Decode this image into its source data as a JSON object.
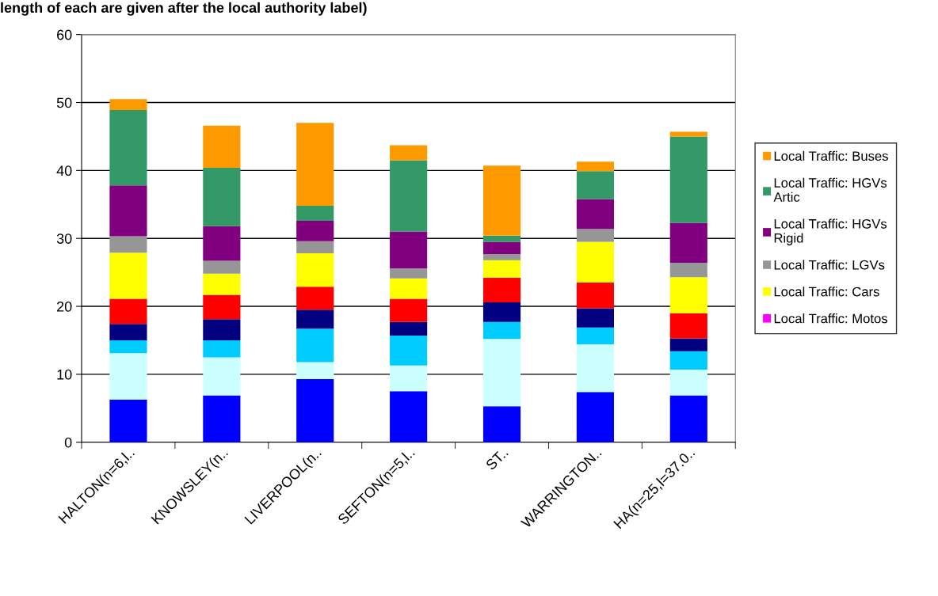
{
  "chart_data": {
    "type": "bar",
    "stacked": true,
    "title": "length of each are given after the local authority label)",
    "categories": [
      "HALTON(n=6,l..",
      "KNOWSLEY(n..",
      "LIVERPOOL(n..",
      "SEFTON(n=5,l..",
      "ST..",
      "WARRINGTON..",
      "HA(n=25,l=37.0.."
    ],
    "series": [
      {
        "color": "#0000ff",
        "values": [
          6.3,
          6.9,
          9.3,
          7.5,
          5.3,
          7.4,
          6.9
        ]
      },
      {
        "color": "#ccffff",
        "values": [
          6.8,
          5.6,
          2.5,
          3.8,
          9.9,
          7.0,
          3.8
        ]
      },
      {
        "color": "#00ccff",
        "values": [
          1.9,
          2.5,
          4.9,
          4.4,
          2.5,
          2.5,
          2.7
        ]
      },
      {
        "color": "#000080",
        "values": [
          2.4,
          3.1,
          2.8,
          2.0,
          2.9,
          2.8,
          1.9
        ]
      },
      {
        "color": "#ff0000",
        "values": [
          3.7,
          3.6,
          3.4,
          3.4,
          3.6,
          3.8,
          3.7
        ]
      },
      {
        "name": "Local Traffic: Motos",
        "color": "#ff00ff",
        "values": [
          0,
          0,
          0,
          0,
          0,
          0,
          0
        ]
      },
      {
        "name": "Local Traffic: Cars",
        "color": "#ffff00",
        "values": [
          6.8,
          3.1,
          4.9,
          3.0,
          2.6,
          6.0,
          5.3
        ]
      },
      {
        "name": "Local Traffic: LGVs",
        "color": "#969696",
        "values": [
          2.4,
          1.9,
          1.8,
          1.5,
          0.9,
          1.9,
          2.1
        ]
      },
      {
        "name": "Local Traffic: HGVs Rigid",
        "color": "#800080",
        "values": [
          7.5,
          5.1,
          3.0,
          5.4,
          1.8,
          4.4,
          5.9
        ]
      },
      {
        "name": "Local Traffic: HGVs Artic",
        "color": "#339966",
        "values": [
          11.1,
          8.6,
          2.2,
          10.5,
          0.9,
          4.1,
          12.7
        ]
      },
      {
        "name": "Local Traffic: Buses",
        "color": "#ff9900",
        "values": [
          1.6,
          6.2,
          12.2,
          2.2,
          10.3,
          1.4,
          0.7
        ]
      }
    ],
    "ylim": [
      0,
      60
    ],
    "yticks": [
      0,
      10,
      20,
      30,
      40,
      50,
      60
    ],
    "grid": "y",
    "legend": "right"
  }
}
